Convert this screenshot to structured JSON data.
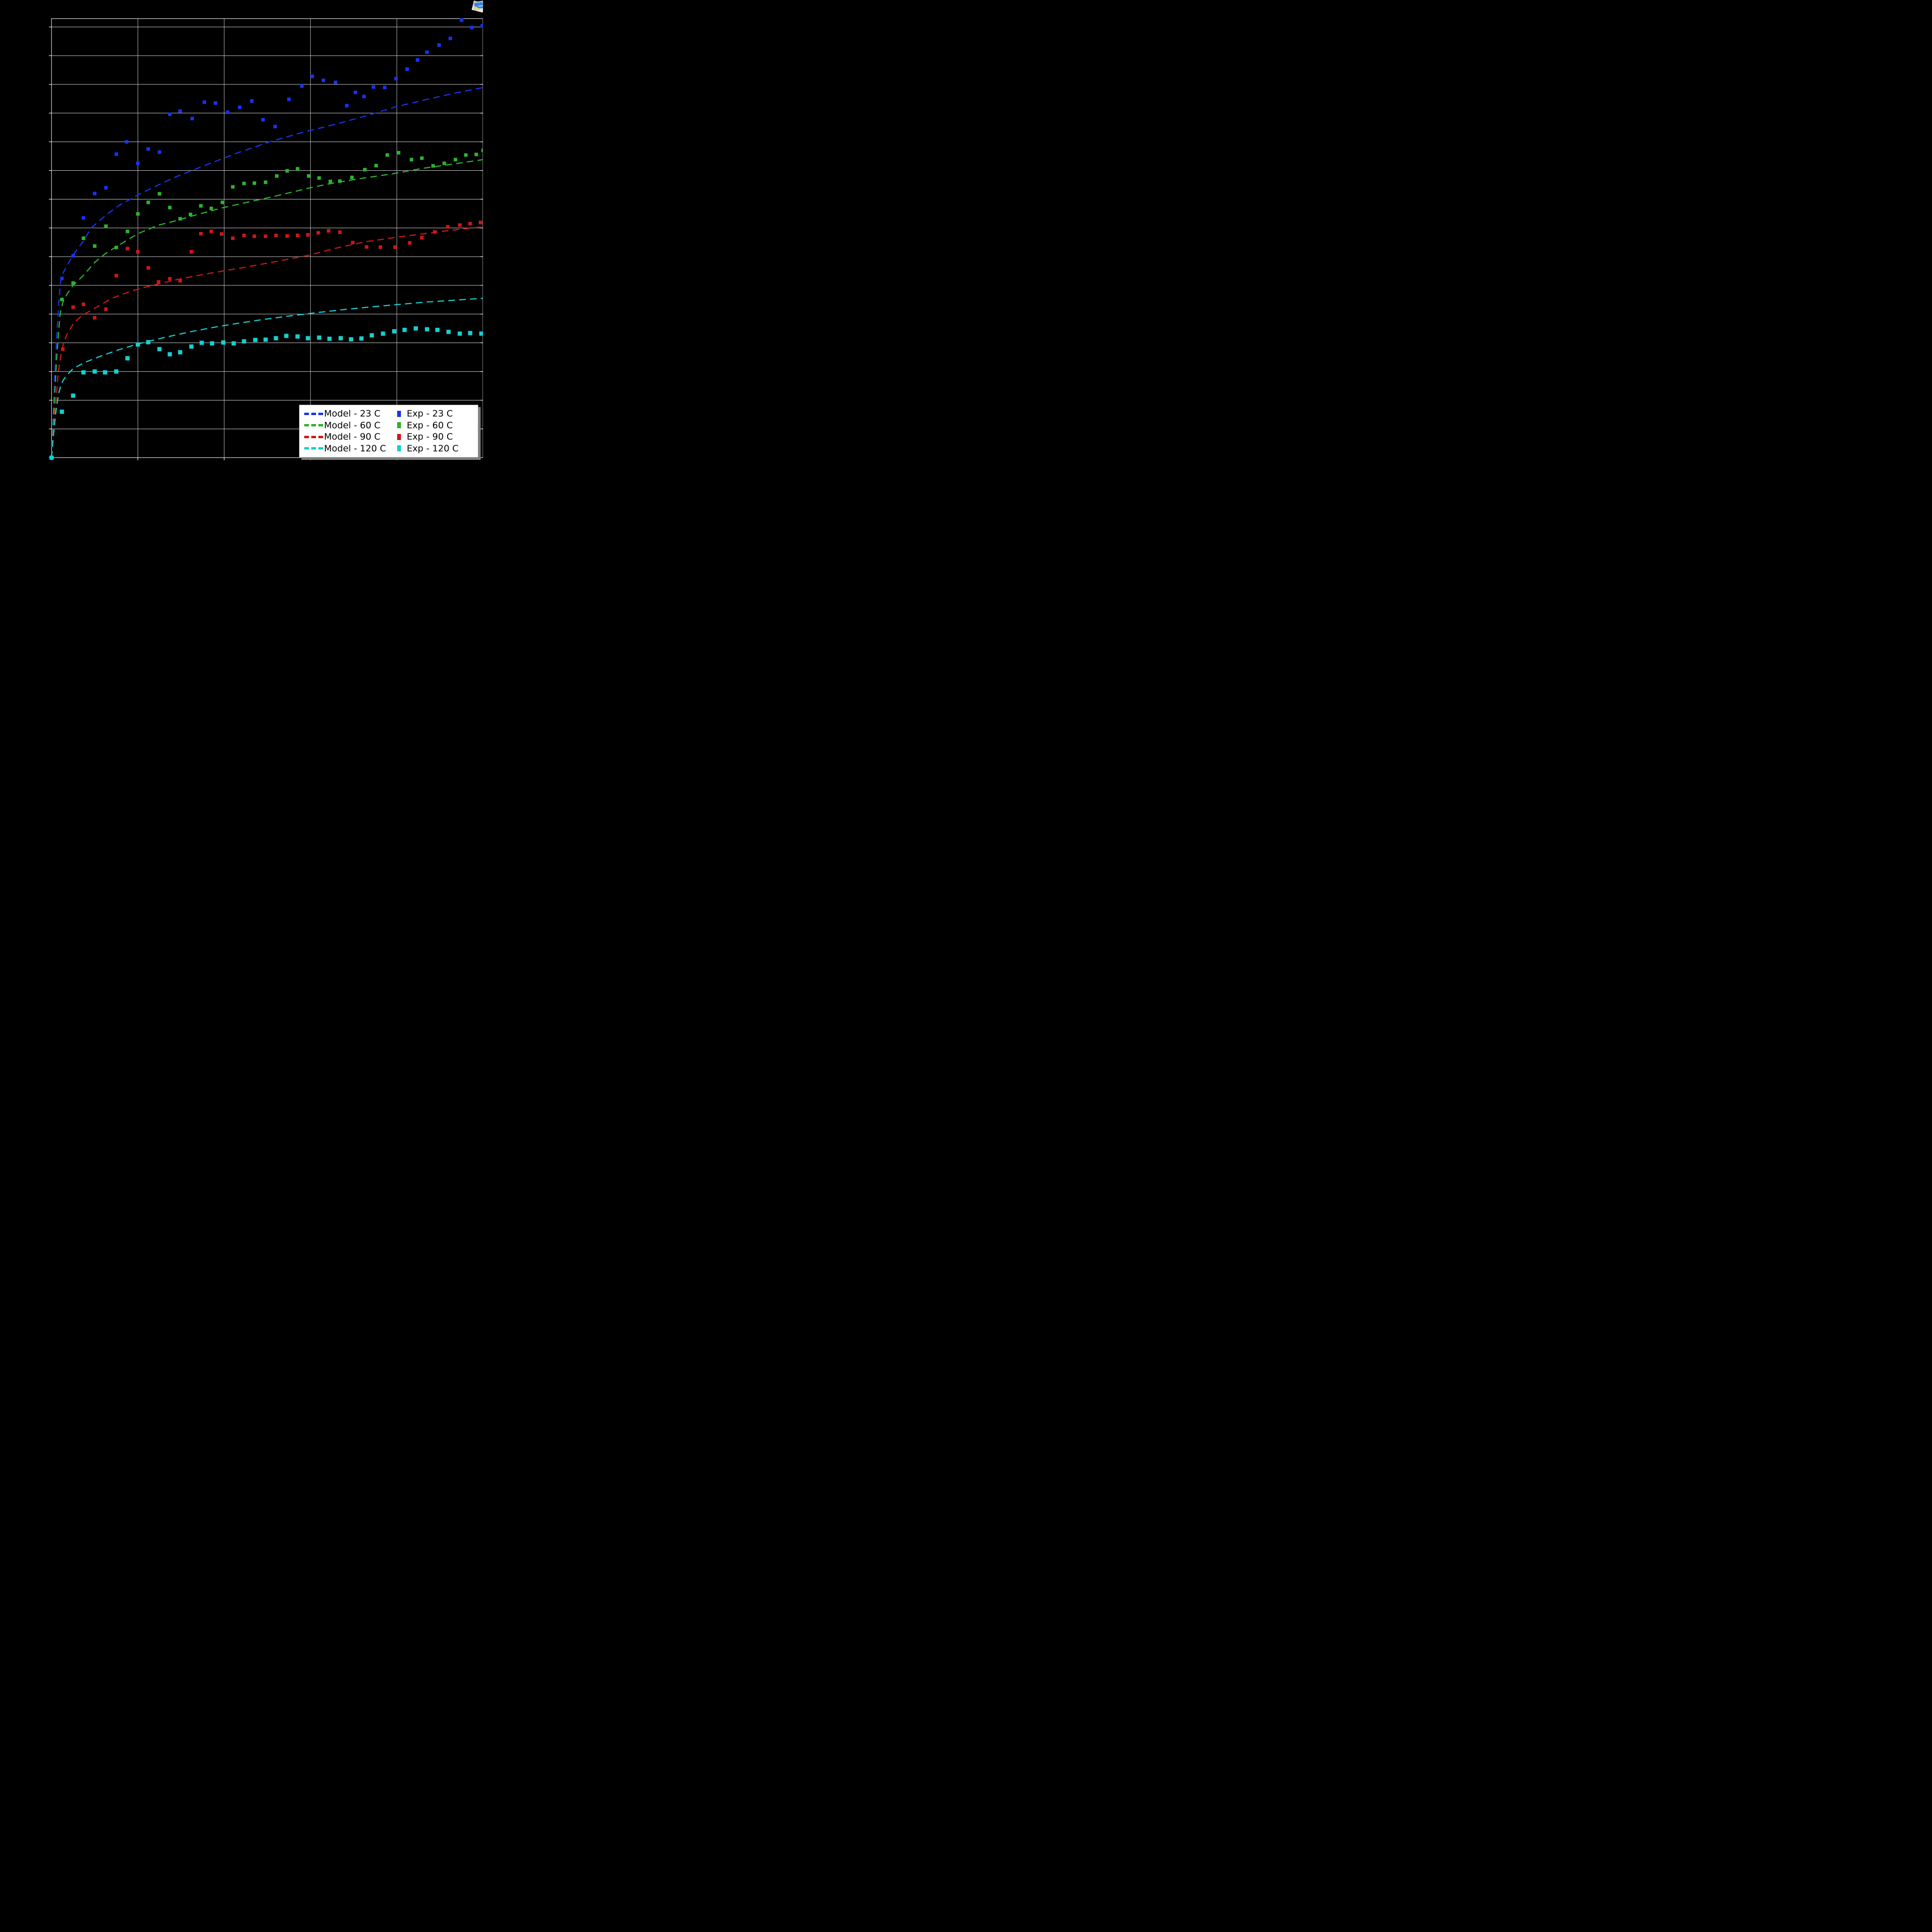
{
  "window": {
    "background": "#000000"
  },
  "corner_icon": {
    "name": "photo-overlay-icon",
    "sky": "#3f8df0",
    "sun": "#ffd825"
  },
  "legend": {
    "background": "#ffffff",
    "border": "#a0a0a0",
    "shadow": "#7f7f7f",
    "model_items": [
      {
        "label": "Model - 23 C",
        "color": "#1733f0"
      },
      {
        "label": "Model - 60 C",
        "color": "#2db32d"
      },
      {
        "label": "Model - 90 C",
        "color": "#d01616"
      },
      {
        "label": "Model - 120 C",
        "color": "#14d0d0"
      }
    ],
    "exp_items": [
      {
        "label": "Exp - 23 C",
        "color": "#1733f0"
      },
      {
        "label": "Exp - 60 C",
        "color": "#2db32d"
      },
      {
        "label": "Exp - 90 C",
        "color": "#d01616"
      },
      {
        "label": "Exp - 120 C",
        "color": "#14d0d0"
      }
    ]
  },
  "chart_data": {
    "type": "line",
    "title": "",
    "xlabel": "",
    "ylabel": "",
    "note": "Axis tick labels are not visible in the screenshot (black on black); values below are in gridline units estimated from the grid. x: 0-5 (gridlines every 1), y: 0-15.29 (gridlines every 1).",
    "xlim": [
      0,
      5.0
    ],
    "ylim": [
      0,
      15.29
    ],
    "x_gridlines": [
      1,
      2,
      3,
      4
    ],
    "y_gridlines": [
      1,
      2,
      3,
      4,
      5,
      6,
      7,
      8,
      9,
      10,
      11,
      12,
      13,
      14,
      15
    ],
    "grid_color": "#cccccc",
    "frame_color": "#dddddd",
    "series": [
      {
        "name": "Model - 23 C",
        "kind": "dashed-line",
        "color": "#1733f0",
        "points": [
          [
            0,
            0
          ],
          [
            0.02,
            1.5
          ],
          [
            0.04,
            3.0
          ],
          [
            0.06,
            4.2
          ],
          [
            0.08,
            5.2
          ],
          [
            0.1,
            6.0
          ],
          [
            0.12,
            6.35
          ],
          [
            0.18,
            6.7
          ],
          [
            0.25,
            7.05
          ],
          [
            0.37,
            7.55
          ],
          [
            0.46,
            8.0
          ],
          [
            0.63,
            8.45
          ],
          [
            0.78,
            8.78
          ],
          [
            1.0,
            9.15
          ],
          [
            1.24,
            9.5
          ],
          [
            1.44,
            9.78
          ],
          [
            1.77,
            10.17
          ],
          [
            2.15,
            10.61
          ],
          [
            2.53,
            11.0
          ],
          [
            2.91,
            11.33
          ],
          [
            3.3,
            11.62
          ],
          [
            3.65,
            11.91
          ],
          [
            3.99,
            12.22
          ],
          [
            4.34,
            12.47
          ],
          [
            4.68,
            12.7
          ],
          [
            5.0,
            12.89
          ]
        ]
      },
      {
        "name": "Model - 60 C",
        "kind": "dashed-line",
        "color": "#2db32d",
        "points": [
          [
            0,
            0
          ],
          [
            0.02,
            1.2
          ],
          [
            0.04,
            2.4
          ],
          [
            0.06,
            3.5
          ],
          [
            0.08,
            4.3
          ],
          [
            0.1,
            5.0
          ],
          [
            0.13,
            5.4
          ],
          [
            0.18,
            5.7
          ],
          [
            0.25,
            6.0
          ],
          [
            0.37,
            6.35
          ],
          [
            0.5,
            6.8
          ],
          [
            0.63,
            7.12
          ],
          [
            0.78,
            7.4
          ],
          [
            1.0,
            7.8
          ],
          [
            1.24,
            8.1
          ],
          [
            1.44,
            8.25
          ],
          [
            1.61,
            8.4
          ],
          [
            1.79,
            8.55
          ],
          [
            1.98,
            8.7
          ],
          [
            2.2,
            8.85
          ],
          [
            2.58,
            9.1
          ],
          [
            3.0,
            9.4
          ],
          [
            3.24,
            9.55
          ],
          [
            3.58,
            9.72
          ],
          [
            3.94,
            9.88
          ],
          [
            4.29,
            10.07
          ],
          [
            4.64,
            10.22
          ],
          [
            5.0,
            10.38
          ]
        ]
      },
      {
        "name": "Model - 90 C",
        "kind": "dashed-line",
        "color": "#d01616",
        "points": [
          [
            0,
            0
          ],
          [
            0.02,
            0.9
          ],
          [
            0.05,
            2.0
          ],
          [
            0.08,
            3.0
          ],
          [
            0.11,
            3.6
          ],
          [
            0.14,
            4.0
          ],
          [
            0.18,
            4.3
          ],
          [
            0.25,
            4.65
          ],
          [
            0.35,
            4.95
          ],
          [
            0.5,
            5.2
          ],
          [
            0.7,
            5.55
          ],
          [
            0.9,
            5.78
          ],
          [
            1.1,
            5.95
          ],
          [
            1.45,
            6.2
          ],
          [
            1.83,
            6.42
          ],
          [
            2.22,
            6.62
          ],
          [
            2.6,
            6.83
          ],
          [
            2.98,
            7.05
          ],
          [
            3.3,
            7.3
          ],
          [
            3.64,
            7.52
          ],
          [
            3.98,
            7.67
          ],
          [
            4.32,
            7.8
          ],
          [
            4.66,
            7.93
          ],
          [
            5.0,
            8.04
          ]
        ]
      },
      {
        "name": "Model - 120 C",
        "kind": "dashed-line",
        "color": "#14d0d0",
        "points": [
          [
            0,
            0
          ],
          [
            0.02,
            0.7
          ],
          [
            0.05,
            1.6
          ],
          [
            0.08,
            2.2
          ],
          [
            0.11,
            2.55
          ],
          [
            0.14,
            2.72
          ],
          [
            0.18,
            2.88
          ],
          [
            0.25,
            3.1
          ],
          [
            0.38,
            3.31
          ],
          [
            0.53,
            3.49
          ],
          [
            0.75,
            3.73
          ],
          [
            1.0,
            3.96
          ],
          [
            1.3,
            4.18
          ],
          [
            1.6,
            4.38
          ],
          [
            1.9,
            4.55
          ],
          [
            2.2,
            4.7
          ],
          [
            2.5,
            4.83
          ],
          [
            2.8,
            4.95
          ],
          [
            3.1,
            5.06
          ],
          [
            3.4,
            5.16
          ],
          [
            3.7,
            5.25
          ],
          [
            4.0,
            5.33
          ],
          [
            4.35,
            5.42
          ],
          [
            4.7,
            5.49
          ],
          [
            5.0,
            5.55
          ]
        ]
      },
      {
        "name": "Exp - 23 C",
        "kind": "square-markers",
        "color": "#1733f0",
        "marker_size": 7.5,
        "points": [
          [
            0.12,
            6.24
          ],
          [
            0.25,
            7.03
          ],
          [
            0.37,
            8.35
          ],
          [
            0.5,
            9.2
          ],
          [
            0.63,
            9.4
          ],
          [
            0.75,
            10.57
          ],
          [
            0.87,
            11.0
          ],
          [
            1.0,
            10.25
          ],
          [
            1.12,
            10.75
          ],
          [
            1.25,
            10.64
          ],
          [
            1.37,
            11.96
          ],
          [
            1.49,
            12.07
          ],
          [
            1.63,
            11.81
          ],
          [
            1.77,
            12.38
          ],
          [
            1.9,
            12.35
          ],
          [
            2.04,
            12.03
          ],
          [
            2.18,
            12.2
          ],
          [
            2.32,
            12.42
          ],
          [
            2.45,
            11.77
          ],
          [
            2.59,
            11.53
          ],
          [
            2.75,
            12.48
          ],
          [
            2.9,
            12.94
          ],
          [
            3.02,
            13.28
          ],
          [
            3.15,
            13.14
          ],
          [
            3.29,
            13.07
          ],
          [
            3.42,
            12.26
          ],
          [
            3.52,
            12.72
          ],
          [
            3.62,
            12.58
          ],
          [
            3.73,
            12.91
          ],
          [
            3.86,
            12.89
          ],
          [
            3.99,
            13.2
          ],
          [
            4.12,
            13.53
          ],
          [
            4.24,
            13.85
          ],
          [
            4.35,
            14.12
          ],
          [
            4.49,
            14.37
          ],
          [
            4.62,
            14.6
          ],
          [
            4.75,
            15.24
          ],
          [
            4.87,
            14.98
          ],
          [
            4.99,
            15.04
          ]
        ]
      },
      {
        "name": "Exp - 60 C",
        "kind": "square-markers",
        "color": "#2db32d",
        "marker_size": 7.5,
        "points": [
          [
            0.12,
            5.51
          ],
          [
            0.25,
            6.08
          ],
          [
            0.37,
            7.64
          ],
          [
            0.5,
            7.37
          ],
          [
            0.63,
            8.06
          ],
          [
            0.75,
            7.32
          ],
          [
            0.88,
            7.88
          ],
          [
            1.0,
            8.49
          ],
          [
            1.12,
            8.89
          ],
          [
            1.25,
            9.19
          ],
          [
            1.37,
            8.71
          ],
          [
            1.49,
            8.32
          ],
          [
            1.61,
            8.47
          ],
          [
            1.73,
            8.77
          ],
          [
            1.85,
            8.68
          ],
          [
            1.98,
            8.89
          ],
          [
            2.1,
            9.43
          ],
          [
            2.23,
            9.55
          ],
          [
            2.35,
            9.56
          ],
          [
            2.48,
            9.59
          ],
          [
            2.61,
            9.81
          ],
          [
            2.73,
            9.99
          ],
          [
            2.85,
            10.06
          ],
          [
            2.98,
            9.81
          ],
          [
            3.1,
            9.74
          ],
          [
            3.23,
            9.62
          ],
          [
            3.34,
            9.63
          ],
          [
            3.48,
            9.76
          ],
          [
            3.63,
            10.03
          ],
          [
            3.76,
            10.17
          ],
          [
            3.89,
            10.54
          ],
          [
            4.02,
            10.62
          ],
          [
            4.17,
            10.38
          ],
          [
            4.29,
            10.43
          ],
          [
            4.42,
            10.16
          ],
          [
            4.55,
            10.25
          ],
          [
            4.68,
            10.38
          ],
          [
            4.8,
            10.54
          ],
          [
            4.92,
            10.56
          ],
          [
            5.0,
            10.7
          ]
        ]
      },
      {
        "name": "Exp - 90 C",
        "kind": "square-markers",
        "color": "#d01616",
        "marker_size": 7.5,
        "points": [
          [
            0.13,
            3.78
          ],
          [
            0.25,
            5.24
          ],
          [
            0.37,
            5.34
          ],
          [
            0.5,
            4.87
          ],
          [
            0.63,
            5.17
          ],
          [
            0.75,
            6.34
          ],
          [
            0.88,
            7.28
          ],
          [
            1.0,
            7.17
          ],
          [
            1.12,
            6.61
          ],
          [
            1.24,
            6.12
          ],
          [
            1.37,
            6.23
          ],
          [
            1.49,
            6.16
          ],
          [
            1.62,
            7.17
          ],
          [
            1.73,
            7.8
          ],
          [
            1.85,
            7.88
          ],
          [
            1.97,
            7.79
          ],
          [
            2.1,
            7.64
          ],
          [
            2.23,
            7.74
          ],
          [
            2.35,
            7.71
          ],
          [
            2.48,
            7.71
          ],
          [
            2.6,
            7.74
          ],
          [
            2.73,
            7.72
          ],
          [
            2.85,
            7.74
          ],
          [
            2.97,
            7.76
          ],
          [
            3.09,
            7.83
          ],
          [
            3.21,
            7.9
          ],
          [
            3.34,
            7.85
          ],
          [
            3.49,
            7.49
          ],
          [
            3.65,
            7.34
          ],
          [
            3.81,
            7.33
          ],
          [
            3.98,
            7.33
          ],
          [
            4.15,
            7.48
          ],
          [
            4.29,
            7.66
          ],
          [
            4.44,
            7.86
          ],
          [
            4.59,
            8.04
          ],
          [
            4.73,
            8.1
          ],
          [
            4.85,
            8.15
          ],
          [
            4.97,
            8.19
          ]
        ]
      },
      {
        "name": "Exp - 120 C",
        "kind": "square-markers",
        "color": "#14d0d0",
        "marker_size": 9,
        "points": [
          [
            0.0,
            0.0
          ],
          [
            0.12,
            1.6
          ],
          [
            0.25,
            2.16
          ],
          [
            0.37,
            2.97
          ],
          [
            0.5,
            3.0
          ],
          [
            0.62,
            2.97
          ],
          [
            0.75,
            3.0
          ],
          [
            0.88,
            3.46
          ],
          [
            1.0,
            3.94
          ],
          [
            1.12,
            4.02
          ],
          [
            1.25,
            3.78
          ],
          [
            1.37,
            3.6
          ],
          [
            1.49,
            3.67
          ],
          [
            1.62,
            3.87
          ],
          [
            1.74,
            4.0
          ],
          [
            1.86,
            3.98
          ],
          [
            1.99,
            4.01
          ],
          [
            2.11,
            3.98
          ],
          [
            2.23,
            4.05
          ],
          [
            2.36,
            4.1
          ],
          [
            2.48,
            4.11
          ],
          [
            2.6,
            4.16
          ],
          [
            2.72,
            4.24
          ],
          [
            2.85,
            4.22
          ],
          [
            2.97,
            4.16
          ],
          [
            3.1,
            4.18
          ],
          [
            3.22,
            4.14
          ],
          [
            3.35,
            4.16
          ],
          [
            3.47,
            4.12
          ],
          [
            3.59,
            4.15
          ],
          [
            3.71,
            4.26
          ],
          [
            3.84,
            4.32
          ],
          [
            3.97,
            4.4
          ],
          [
            4.09,
            4.45
          ],
          [
            4.22,
            4.5
          ],
          [
            4.35,
            4.47
          ],
          [
            4.47,
            4.45
          ],
          [
            4.6,
            4.38
          ],
          [
            4.73,
            4.32
          ],
          [
            4.85,
            4.34
          ],
          [
            4.98,
            4.32
          ]
        ]
      }
    ],
    "legend_position": "lower right"
  }
}
